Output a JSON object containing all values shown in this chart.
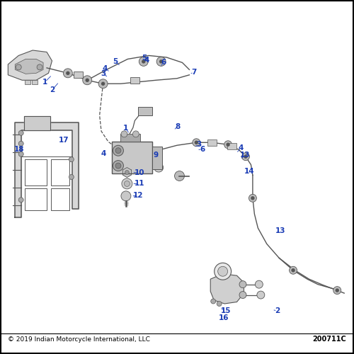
{
  "background_color": "#ffffff",
  "border_color": "#000000",
  "footer_text": "© 2019 Indian Motorcycle International, LLC",
  "part_number": "200711C",
  "label_color": "#1a3cb5",
  "line_color": "#555555",
  "component_color": "#888888",
  "figsize": [
    5.0,
    5.0
  ],
  "dpi": 100
}
